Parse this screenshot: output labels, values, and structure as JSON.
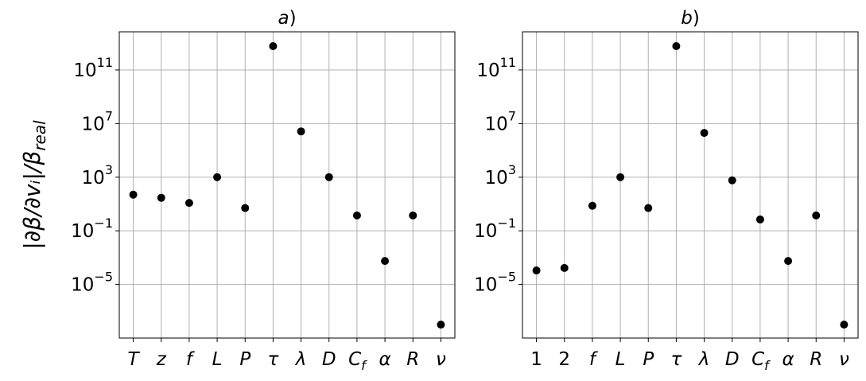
{
  "chart_data": [
    {
      "type": "scatter",
      "title": "a)",
      "ylabel": "|∂β/∂vᵢ|/βreal",
      "categories": [
        "T",
        "z",
        "f",
        "L",
        "P",
        "τ",
        "λ",
        "D",
        "Cf",
        "α",
        "R",
        "ν"
      ],
      "values": [
        50,
        29,
        12,
        1000,
        5,
        6000000000000.0,
        2600000.0,
        1000,
        1.4,
        0.00056,
        1.4,
        1e-08
      ],
      "color": "#000000",
      "log_y": true,
      "grid": true,
      "ylim": [
        1e-09,
        70000000000000.0
      ],
      "yticks": [
        {
          "value": 1e-05,
          "label": "10−5"
        },
        {
          "value": 0.1,
          "label": "10−1"
        },
        {
          "value": 1000,
          "label": "103"
        },
        {
          "value": 10000000.0,
          "label": "107"
        },
        {
          "value": 100000000000.0,
          "label": "1011"
        }
      ]
    },
    {
      "type": "scatter",
      "title": "b)",
      "categories": [
        "1",
        "2",
        "f",
        "L",
        "P",
        "τ",
        "λ",
        "D",
        "Cf",
        "α",
        "R",
        "ν"
      ],
      "values": [
        0.00011,
        0.00017,
        7.4,
        1000,
        5,
        6000000000000.0,
        2000000.0,
        580,
        0.7,
        0.00056,
        1.4,
        1e-08
      ],
      "color": "#000000",
      "log_y": true,
      "grid": true,
      "ylim": [
        1e-09,
        70000000000000.0
      ],
      "yticks": [
        {
          "value": 1e-05,
          "label": "10−5"
        },
        {
          "value": 0.1,
          "label": "10−1"
        },
        {
          "value": 1000,
          "label": "103"
        },
        {
          "value": 10000000.0,
          "label": "107"
        },
        {
          "value": 100000000000.0,
          "label": "1011"
        }
      ]
    }
  ]
}
